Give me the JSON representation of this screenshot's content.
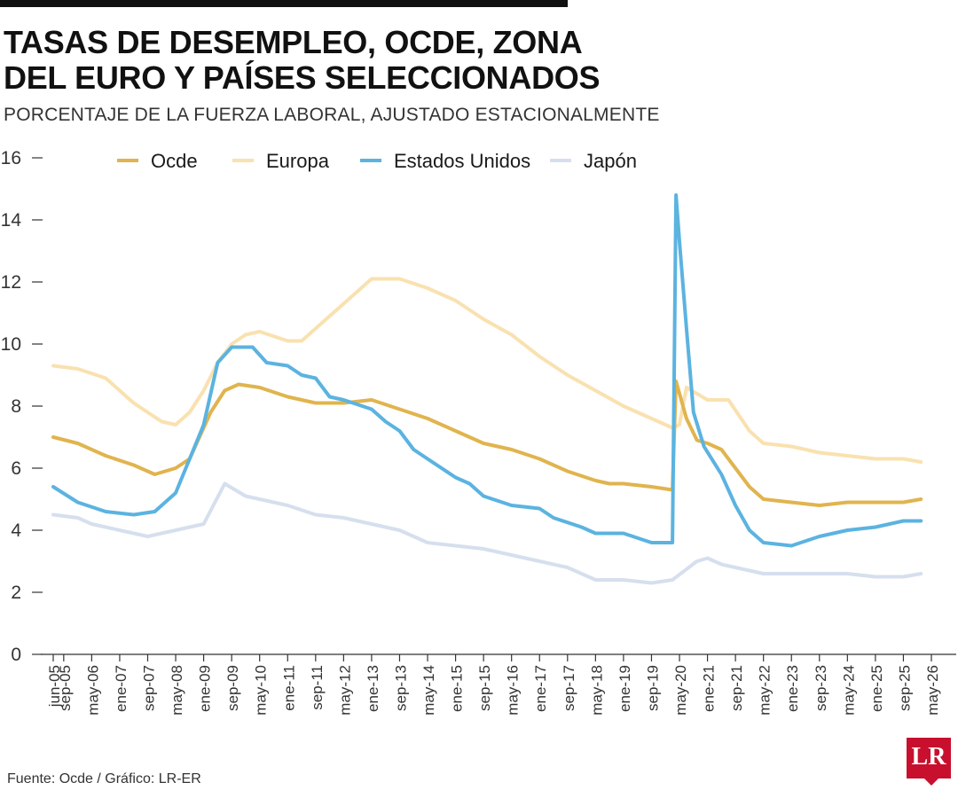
{
  "header": {
    "title": "TASAS DE DESEMPLEO, OCDE, ZONA DEL EURO Y PAÍSES SELECCIONADOS",
    "subtitle": "PORCENTAJE DE LA FUERZA LABORAL, AJUSTADO ESTACIONALMENTE"
  },
  "footer": {
    "source": "Fuente: Ocde / Gráfico: LR-ER",
    "logo_text": "LR"
  },
  "colors": {
    "ocde": "#E0B44E",
    "europa": "#F9E1B0",
    "eeuu": "#5BB3E0",
    "japon": "#D6DFEE",
    "text": "#1a1a1a",
    "axis": "#333333"
  },
  "chart_data": {
    "type": "line",
    "title": "TASAS DE DESEMPLEO, OCDE, ZONA DEL EURO Y PAÍSES SELECCIONADOS",
    "subtitle": "PORCENTAJE DE LA FUERZA LABORAL, AJUSTADO ESTACIONALMENTE",
    "xlabel": "",
    "ylabel": "",
    "ylim": [
      0,
      16
    ],
    "yticks": [
      0,
      2,
      4,
      6,
      8,
      10,
      12,
      14,
      16
    ],
    "xlim": [
      "jun-05",
      "may-26"
    ],
    "xtick_labels": [
      "jun-05",
      "sep-05",
      "may-06",
      "ene-07",
      "sep-07",
      "may-08",
      "ene-09",
      "sep-09",
      "may-10",
      "ene-11",
      "sep-11",
      "may-12",
      "ene-13",
      "sep-13",
      "may-14",
      "ene-15",
      "sep-15",
      "may-16",
      "ene-17",
      "sep-17",
      "may-18",
      "ene-19",
      "sep-19",
      "may-20",
      "ene-21",
      "sep-21",
      "may-22",
      "ene-23",
      "sep-23",
      "may-24",
      "ene-25",
      "sep-25",
      "may-26"
    ],
    "legend_position": "top",
    "series": [
      {
        "name": "Ocde",
        "color": "#E0B44E",
        "points": [
          [
            "jun-05",
            7.0
          ],
          [
            "ene-06",
            6.8
          ],
          [
            "sep-06",
            6.4
          ],
          [
            "may-07",
            6.1
          ],
          [
            "nov-07",
            5.8
          ],
          [
            "may-08",
            6.0
          ],
          [
            "sep-08",
            6.3
          ],
          [
            "mar-09",
            7.8
          ],
          [
            "jul-09",
            8.5
          ],
          [
            "nov-09",
            8.7
          ],
          [
            "may-10",
            8.6
          ],
          [
            "ene-11",
            8.3
          ],
          [
            "sep-11",
            8.1
          ],
          [
            "may-12",
            8.1
          ],
          [
            "ene-13",
            8.2
          ],
          [
            "sep-13",
            7.9
          ],
          [
            "may-14",
            7.6
          ],
          [
            "ene-15",
            7.2
          ],
          [
            "sep-15",
            6.8
          ],
          [
            "may-16",
            6.6
          ],
          [
            "ene-17",
            6.3
          ],
          [
            "sep-17",
            5.9
          ],
          [
            "may-18",
            5.6
          ],
          [
            "sep-18",
            5.5
          ],
          [
            "ene-19",
            5.5
          ],
          [
            "sep-19",
            5.4
          ],
          [
            "mar-20",
            5.3
          ],
          [
            "abr-20",
            8.8
          ],
          [
            "jul-20",
            7.6
          ],
          [
            "oct-20",
            6.9
          ],
          [
            "ene-21",
            6.8
          ],
          [
            "may-21",
            6.6
          ],
          [
            "sep-21",
            6.0
          ],
          [
            "ene-22",
            5.4
          ],
          [
            "may-22",
            5.0
          ],
          [
            "ene-23",
            4.9
          ],
          [
            "sep-23",
            4.8
          ],
          [
            "may-24",
            4.9
          ],
          [
            "ene-25",
            4.9
          ],
          [
            "sep-25",
            4.9
          ],
          [
            "feb-26",
            5.0
          ]
        ]
      },
      {
        "name": "Europa",
        "color": "#F9E1B0",
        "points": [
          [
            "jun-05",
            9.3
          ],
          [
            "ene-06",
            9.2
          ],
          [
            "sep-06",
            8.9
          ],
          [
            "may-07",
            8.1
          ],
          [
            "ene-08",
            7.5
          ],
          [
            "may-08",
            7.4
          ],
          [
            "sep-08",
            7.8
          ],
          [
            "ene-09",
            8.5
          ],
          [
            "may-09",
            9.4
          ],
          [
            "sep-09",
            10.0
          ],
          [
            "ene-10",
            10.3
          ],
          [
            "may-10",
            10.4
          ],
          [
            "ene-11",
            10.1
          ],
          [
            "may-11",
            10.1
          ],
          [
            "sep-11",
            10.5
          ],
          [
            "may-12",
            11.3
          ],
          [
            "ene-13",
            12.1
          ],
          [
            "sep-13",
            12.1
          ],
          [
            "may-14",
            11.8
          ],
          [
            "ene-15",
            11.4
          ],
          [
            "sep-15",
            10.8
          ],
          [
            "may-16",
            10.3
          ],
          [
            "ene-17",
            9.6
          ],
          [
            "sep-17",
            9.0
          ],
          [
            "may-18",
            8.5
          ],
          [
            "ene-19",
            8.0
          ],
          [
            "sep-19",
            7.6
          ],
          [
            "mar-20",
            7.3
          ],
          [
            "may-20",
            7.4
          ],
          [
            "jul-20",
            8.6
          ],
          [
            "ene-21",
            8.2
          ],
          [
            "jul-21",
            8.2
          ],
          [
            "ene-22",
            7.2
          ],
          [
            "may-22",
            6.8
          ],
          [
            "ene-23",
            6.7
          ],
          [
            "sep-23",
            6.5
          ],
          [
            "may-24",
            6.4
          ],
          [
            "ene-25",
            6.3
          ],
          [
            "sep-25",
            6.3
          ],
          [
            "feb-26",
            6.2
          ]
        ]
      },
      {
        "name": "Estados Unidos",
        "color": "#5BB3E0",
        "points": [
          [
            "jun-05",
            5.4
          ],
          [
            "ene-06",
            4.9
          ],
          [
            "sep-06",
            4.6
          ],
          [
            "may-07",
            4.5
          ],
          [
            "nov-07",
            4.6
          ],
          [
            "may-08",
            5.2
          ],
          [
            "ene-09",
            7.4
          ],
          [
            "may-09",
            9.4
          ],
          [
            "sep-09",
            9.9
          ],
          [
            "mar-10",
            9.9
          ],
          [
            "jul-10",
            9.4
          ],
          [
            "ene-11",
            9.3
          ],
          [
            "may-11",
            9.0
          ],
          [
            "sep-11",
            8.9
          ],
          [
            "ene-12",
            8.3
          ],
          [
            "may-12",
            8.2
          ],
          [
            "ene-13",
            7.9
          ],
          [
            "may-13",
            7.5
          ],
          [
            "sep-13",
            7.2
          ],
          [
            "ene-14",
            6.6
          ],
          [
            "may-14",
            6.3
          ],
          [
            "ene-15",
            5.7
          ],
          [
            "may-15",
            5.5
          ],
          [
            "sep-15",
            5.1
          ],
          [
            "may-16",
            4.8
          ],
          [
            "ene-17",
            4.7
          ],
          [
            "may-17",
            4.4
          ],
          [
            "ene-18",
            4.1
          ],
          [
            "may-18",
            3.9
          ],
          [
            "ene-19",
            3.9
          ],
          [
            "sep-19",
            3.6
          ],
          [
            "mar-20",
            3.6
          ],
          [
            "abr-20",
            14.8
          ],
          [
            "may-20",
            13.3
          ],
          [
            "jul-20",
            10.5
          ],
          [
            "sep-20",
            7.8
          ],
          [
            "dic-20",
            6.7
          ],
          [
            "may-21",
            5.8
          ],
          [
            "sep-21",
            4.8
          ],
          [
            "ene-22",
            4.0
          ],
          [
            "may-22",
            3.6
          ],
          [
            "ene-23",
            3.5
          ],
          [
            "sep-23",
            3.8
          ],
          [
            "may-24",
            4.0
          ],
          [
            "ene-25",
            4.1
          ],
          [
            "sep-25",
            4.3
          ],
          [
            "feb-26",
            4.3
          ]
        ]
      },
      {
        "name": "Japón",
        "color": "#D6DFEE",
        "points": [
          [
            "jun-05",
            4.5
          ],
          [
            "ene-06",
            4.4
          ],
          [
            "may-06",
            4.2
          ],
          [
            "ene-07",
            4.0
          ],
          [
            "sep-07",
            3.8
          ],
          [
            "may-08",
            4.0
          ],
          [
            "ene-09",
            4.2
          ],
          [
            "jul-09",
            5.5
          ],
          [
            "ene-10",
            5.1
          ],
          [
            "ene-11",
            4.8
          ],
          [
            "sep-11",
            4.5
          ],
          [
            "may-12",
            4.4
          ],
          [
            "ene-13",
            4.2
          ],
          [
            "sep-13",
            4.0
          ],
          [
            "may-14",
            3.6
          ],
          [
            "ene-15",
            3.5
          ],
          [
            "sep-15",
            3.4
          ],
          [
            "may-16",
            3.2
          ],
          [
            "ene-17",
            3.0
          ],
          [
            "sep-17",
            2.8
          ],
          [
            "may-18",
            2.4
          ],
          [
            "ene-19",
            2.4
          ],
          [
            "sep-19",
            2.3
          ],
          [
            "mar-20",
            2.4
          ],
          [
            "oct-20",
            3.0
          ],
          [
            "ene-21",
            3.1
          ],
          [
            "may-21",
            2.9
          ],
          [
            "sep-21",
            2.8
          ],
          [
            "ene-22",
            2.7
          ],
          [
            "may-22",
            2.6
          ],
          [
            "ene-23",
            2.6
          ],
          [
            "sep-23",
            2.6
          ],
          [
            "may-24",
            2.6
          ],
          [
            "ene-25",
            2.5
          ],
          [
            "sep-25",
            2.5
          ],
          [
            "feb-26",
            2.6
          ]
        ]
      }
    ]
  }
}
